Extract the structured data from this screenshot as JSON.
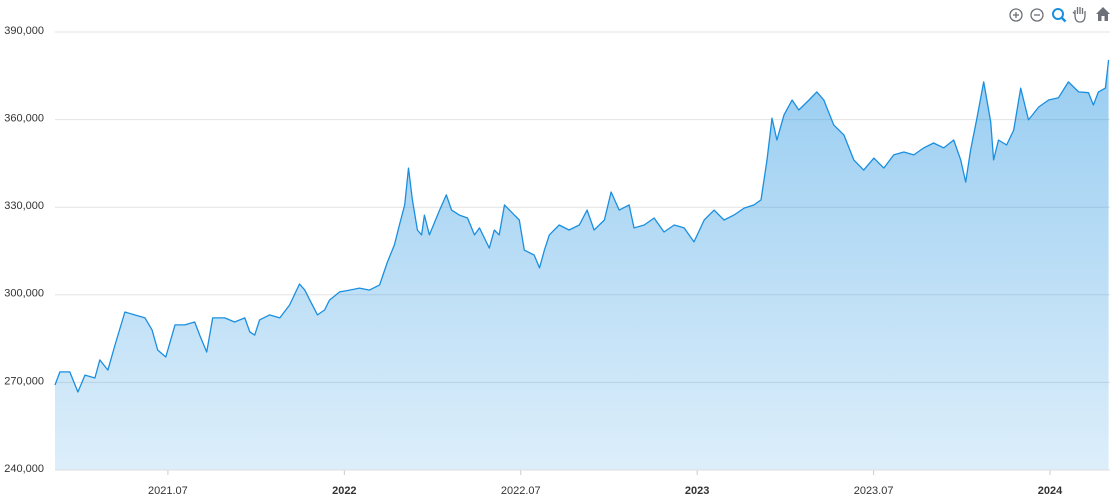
{
  "chart_data": {
    "type": "area",
    "color": "#1a8fe0",
    "grid": true,
    "xlim": [
      2021.18,
      2024.17
    ],
    "xticks": [
      {
        "value": 2021.5,
        "label": "2021.07"
      },
      2022,
      {
        "value": 2022.5,
        "label": "2022.07"
      },
      2023,
      {
        "value": 2023.5,
        "label": "2023.07"
      },
      2024
    ],
    "ylim": [
      240000,
      390000
    ],
    "yticks": [
      {
        "value": 240000,
        "label": "240,000"
      },
      {
        "value": 270000,
        "label": "270,000"
      },
      {
        "value": 300000,
        "label": "300,000"
      },
      {
        "value": 330000,
        "label": "330,000"
      },
      {
        "value": 360000,
        "label": "360,000"
      },
      {
        "value": 390000,
        "label": "390,000"
      }
    ],
    "x": [
      2021.18,
      2021.194,
      2021.222,
      2021.245,
      2021.265,
      2021.293,
      2021.307,
      2021.33,
      2021.35,
      2021.378,
      2021.406,
      2021.435,
      2021.455,
      2021.471,
      2021.494,
      2021.52,
      2021.548,
      2021.576,
      2021.59,
      2021.61,
      2021.627,
      2021.661,
      2021.689,
      2021.718,
      2021.732,
      2021.746,
      2021.76,
      2021.788,
      2021.817,
      2021.845,
      2021.873,
      2021.888,
      2021.902,
      2021.924,
      2021.944,
      2021.958,
      2021.987,
      2022.015,
      2022.043,
      2022.071,
      2022.1,
      2022.122,
      2022.142,
      2022.156,
      2022.171,
      2022.182,
      2022.193,
      2022.207,
      2022.219,
      2022.227,
      2022.241,
      2022.27,
      2022.289,
      2022.304,
      2022.326,
      2022.349,
      2022.369,
      2022.383,
      2022.411,
      2022.425,
      2022.439,
      2022.454,
      2022.468,
      2022.482,
      2022.496,
      2022.51,
      2022.538,
      2022.553,
      2022.567,
      2022.581,
      2022.609,
      2022.637,
      2022.666,
      2022.688,
      2022.708,
      2022.737,
      2022.756,
      2022.779,
      2022.807,
      2022.821,
      2022.85,
      2022.878,
      2022.906,
      2022.935,
      2022.963,
      2022.991,
      2023.02,
      2023.048,
      2023.076,
      2023.104,
      2023.133,
      2023.161,
      2023.181,
      2023.198,
      2023.212,
      2023.226,
      2023.246,
      2023.269,
      2023.288,
      2023.317,
      2023.339,
      2023.359,
      2023.387,
      2023.416,
      2023.444,
      2023.472,
      2023.501,
      2023.529,
      2023.557,
      2023.586,
      2023.614,
      2023.642,
      2023.67,
      2023.699,
      2023.727,
      2023.747,
      2023.761,
      2023.775,
      2023.792,
      2023.812,
      2023.832,
      2023.84,
      2023.854,
      2023.877,
      2023.897,
      2023.917,
      2023.939,
      2023.968,
      2023.996,
      2024.024,
      2024.052,
      2024.081,
      2024.109,
      2024.123,
      2024.137,
      2024.157,
      2024.166
    ],
    "values": [
      269100,
      273600,
      273600,
      266700,
      272500,
      271500,
      277700,
      274200,
      282800,
      294100,
      293100,
      292100,
      288000,
      281100,
      278700,
      289700,
      289700,
      290700,
      286200,
      280400,
      292100,
      292100,
      290700,
      292100,
      287300,
      286200,
      291400,
      293100,
      292100,
      296500,
      303700,
      301600,
      298200,
      293100,
      294800,
      298200,
      301000,
      301600,
      302300,
      301600,
      303400,
      311200,
      317100,
      323900,
      330800,
      343400,
      332500,
      322200,
      320500,
      327300,
      320500,
      329000,
      334200,
      329000,
      327300,
      326300,
      320500,
      322900,
      316000,
      322200,
      320500,
      330800,
      329000,
      327300,
      325600,
      315300,
      313600,
      309200,
      315300,
      320500,
      323900,
      322200,
      323900,
      329000,
      322200,
      325600,
      335200,
      329000,
      330800,
      322900,
      323900,
      326300,
      321500,
      323900,
      322900,
      318100,
      325600,
      329000,
      325600,
      327300,
      329700,
      330800,
      332500,
      346200,
      360500,
      353000,
      361600,
      366700,
      363300,
      366700,
      369500,
      366700,
      358200,
      354700,
      346200,
      342700,
      346800,
      343400,
      347900,
      348900,
      347900,
      350300,
      352000,
      350300,
      353000,
      346200,
      338600,
      349600,
      359900,
      372900,
      359200,
      346200,
      353000,
      351300,
      356400,
      370800,
      359900,
      364300,
      366700,
      367500,
      372900,
      369500,
      369200,
      365000,
      369500,
      370800,
      380400
    ]
  }
}
